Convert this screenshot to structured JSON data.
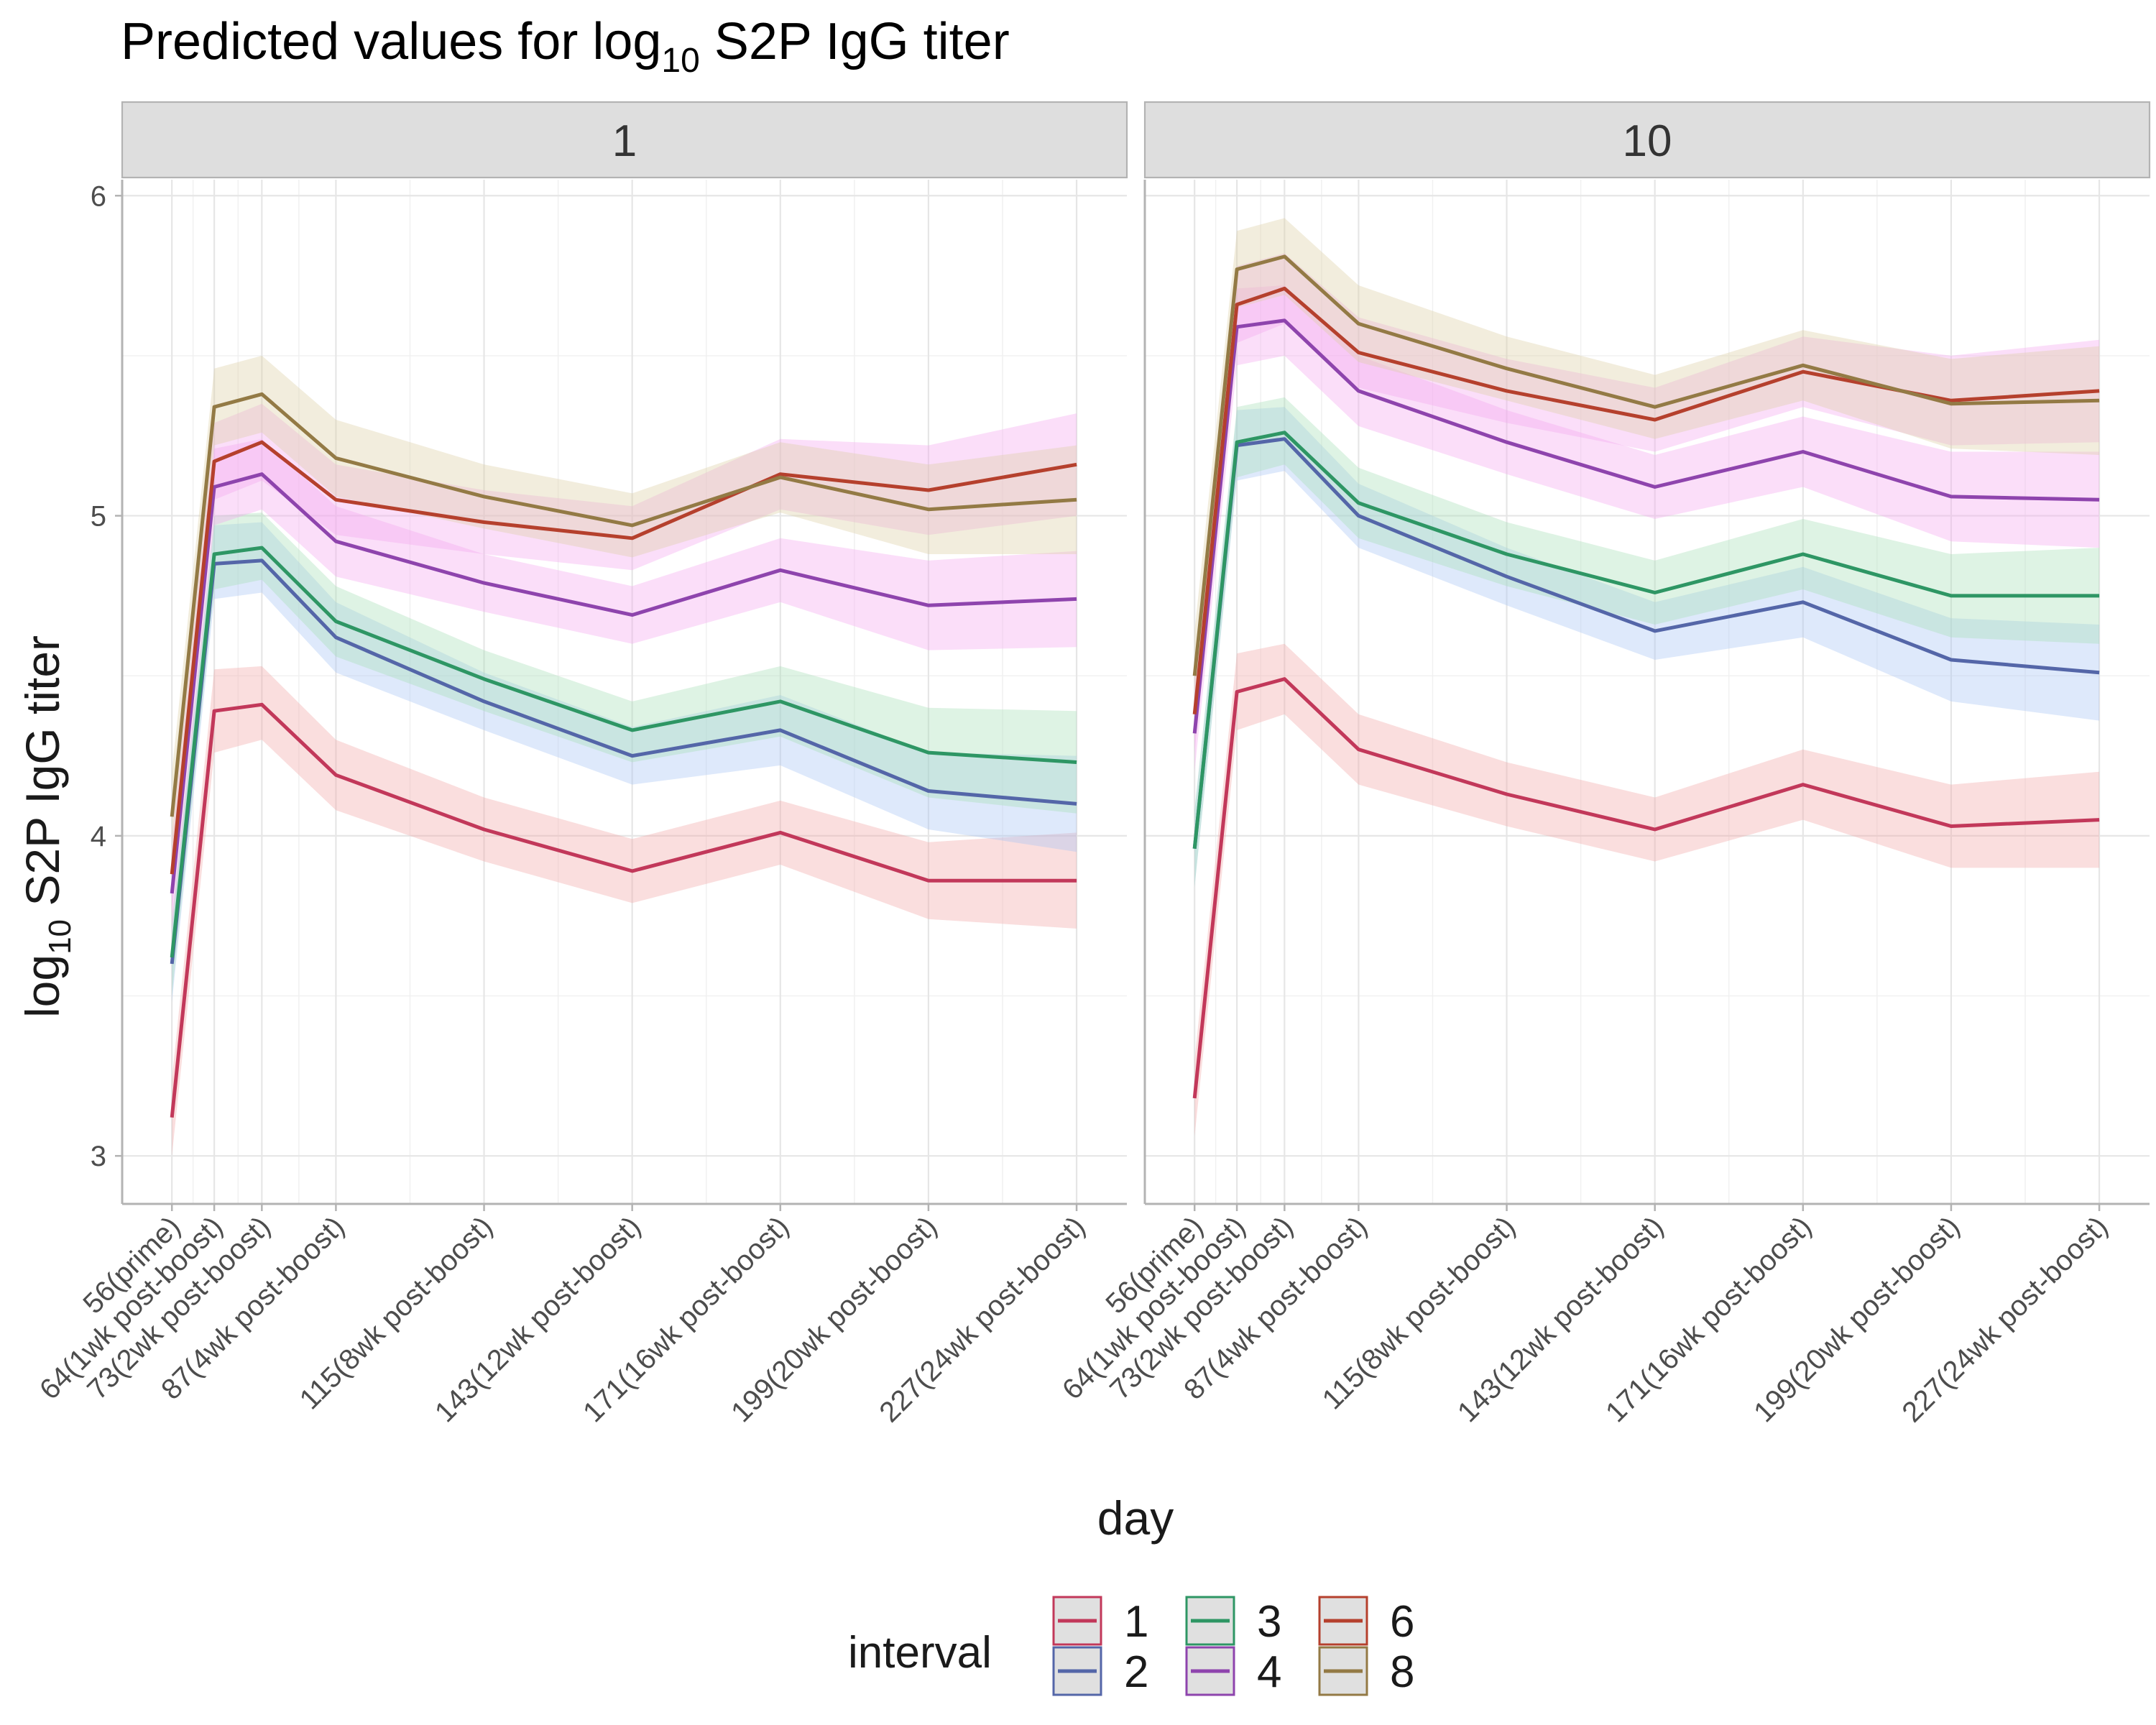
{
  "chart_data": {
    "type": "line",
    "title": "Predicted values for log",
    "title_sub": "10",
    "title_end": " S2P IgG titer",
    "xlabel": "day",
    "ylabel": "log",
    "ylabel_sub": "10",
    "ylabel_end": " S2P IgG titer",
    "ylim": [
      2.85,
      6.05
    ],
    "yticks": [
      3,
      4,
      5,
      6
    ],
    "grid": true,
    "x": [
      56,
      64,
      73,
      87,
      115,
      143,
      171,
      199,
      227
    ],
    "xlim": [
      46.6,
      236.5
    ],
    "x_tick_labels": [
      "56(prime)",
      "64(1wk post-boost)",
      "73(2wk post-boost)",
      "87(4wk post-boost)",
      "115(8wk post-boost)",
      "143(12wk post-boost)",
      "171(16wk post-boost)",
      "199(20wk post-boost)",
      "227(24wk post-boost)"
    ],
    "legend": {
      "title": "interval",
      "position": "bottom"
    },
    "colors": {
      "1": "#c2385a",
      "2": "#5466a8",
      "3": "#2e9664",
      "4": "#8e44ad",
      "6": "#b5402d",
      "8": "#937a45"
    },
    "ribbon_colors": {
      "1": "#f2a7a7",
      "2": "#a9c4f5",
      "3": "#a8e0b8",
      "4": "#f5a8f0",
      "6": "#f5a8f0",
      "8": "#ddd0a5"
    },
    "panels": [
      {
        "strip": "1",
        "series": [
          {
            "name": "1",
            "values": [
              3.12,
              4.39,
              4.41,
              4.19,
              4.02,
              3.89,
              4.01,
              3.86,
              3.86
            ],
            "lower": [
              3.0,
              4.26,
              4.3,
              4.08,
              3.92,
              3.79,
              3.91,
              3.74,
              3.71
            ],
            "upper": [
              3.24,
              4.52,
              4.53,
              4.3,
              4.12,
              3.99,
              4.11,
              3.98,
              4.01
            ]
          },
          {
            "name": "2",
            "values": [
              3.6,
              4.85,
              4.86,
              4.62,
              4.42,
              4.25,
              4.33,
              4.14,
              4.1
            ],
            "lower": [
              3.48,
              4.74,
              4.76,
              4.51,
              4.33,
              4.16,
              4.22,
              4.02,
              3.95
            ],
            "upper": [
              3.72,
              4.97,
              4.98,
              4.73,
              4.51,
              4.34,
              4.44,
              4.26,
              4.25
            ]
          },
          {
            "name": "3",
            "values": [
              3.62,
              4.88,
              4.9,
              4.67,
              4.49,
              4.33,
              4.42,
              4.26,
              4.23
            ],
            "lower": [
              3.5,
              4.77,
              4.8,
              4.56,
              4.39,
              4.23,
              4.31,
              4.12,
              4.07
            ],
            "upper": [
              3.74,
              5.0,
              5.01,
              4.78,
              4.58,
              4.42,
              4.53,
              4.4,
              4.39
            ]
          },
          {
            "name": "4",
            "values": [
              3.82,
              5.09,
              5.13,
              4.92,
              4.79,
              4.69,
              4.83,
              4.72,
              4.74
            ],
            "lower": [
              3.7,
              4.97,
              5.02,
              4.81,
              4.7,
              4.6,
              4.73,
              4.58,
              4.59
            ],
            "upper": [
              3.94,
              5.21,
              5.24,
              5.03,
              4.88,
              4.78,
              4.93,
              4.86,
              4.89
            ]
          },
          {
            "name": "6",
            "values": [
              3.88,
              5.17,
              5.23,
              5.05,
              4.98,
              4.93,
              5.13,
              5.08,
              5.16
            ],
            "lower": [
              3.76,
              5.05,
              5.11,
              4.94,
              4.88,
              4.83,
              5.02,
              4.94,
              5.0
            ],
            "upper": [
              4.0,
              5.29,
              5.35,
              5.16,
              5.08,
              5.03,
              5.24,
              5.22,
              5.32
            ]
          },
          {
            "name": "8",
            "values": [
              4.06,
              5.34,
              5.38,
              5.18,
              5.06,
              4.97,
              5.12,
              5.02,
              5.05
            ],
            "lower": [
              3.92,
              5.22,
              5.26,
              5.06,
              4.96,
              4.87,
              5.01,
              4.88,
              4.88
            ],
            "upper": [
              4.2,
              5.46,
              5.5,
              5.3,
              5.16,
              5.07,
              5.23,
              5.16,
              5.22
            ]
          }
        ]
      },
      {
        "strip": "10",
        "series": [
          {
            "name": "1",
            "values": [
              3.18,
              4.45,
              4.49,
              4.27,
              4.13,
              4.02,
              4.16,
              4.03,
              4.05
            ],
            "lower": [
              3.06,
              4.33,
              4.38,
              4.16,
              4.03,
              3.92,
              4.05,
              3.9,
              3.9
            ],
            "upper": [
              3.3,
              4.57,
              4.6,
              4.38,
              4.23,
              4.12,
              4.27,
              4.16,
              4.2
            ]
          },
          {
            "name": "2",
            "values": [
              3.96,
              5.22,
              5.24,
              5.0,
              4.81,
              4.64,
              4.73,
              4.55,
              4.51
            ],
            "lower": [
              3.84,
              5.11,
              5.14,
              4.9,
              4.72,
              4.55,
              4.62,
              4.42,
              4.36
            ],
            "upper": [
              4.08,
              5.33,
              5.34,
              5.1,
              4.9,
              4.73,
              4.84,
              4.68,
              4.66
            ]
          },
          {
            "name": "3",
            "values": [
              3.96,
              5.23,
              5.26,
              5.04,
              4.88,
              4.76,
              4.88,
              4.75,
              4.75
            ],
            "lower": [
              3.84,
              5.12,
              5.16,
              4.93,
              4.78,
              4.66,
              4.77,
              4.62,
              4.6
            ],
            "upper": [
              4.08,
              5.34,
              5.37,
              5.15,
              4.98,
              4.86,
              4.99,
              4.88,
              4.9
            ]
          },
          {
            "name": "4",
            "values": [
              4.32,
              5.59,
              5.61,
              5.39,
              5.23,
              5.09,
              5.2,
              5.06,
              5.05
            ],
            "lower": [
              4.2,
              5.47,
              5.5,
              5.28,
              5.13,
              4.99,
              5.09,
              4.92,
              4.9
            ],
            "upper": [
              4.44,
              5.71,
              5.72,
              5.5,
              5.33,
              5.19,
              5.31,
              5.2,
              5.2
            ]
          },
          {
            "name": "6",
            "values": [
              4.38,
              5.66,
              5.71,
              5.51,
              5.39,
              5.3,
              5.45,
              5.36,
              5.39
            ],
            "lower": [
              4.26,
              5.54,
              5.6,
              5.4,
              5.29,
              5.2,
              5.34,
              5.22,
              5.23
            ],
            "upper": [
              4.5,
              5.78,
              5.82,
              5.62,
              5.49,
              5.4,
              5.56,
              5.5,
              5.55
            ]
          },
          {
            "name": "8",
            "values": [
              4.5,
              5.77,
              5.81,
              5.6,
              5.46,
              5.34,
              5.47,
              5.35,
              5.36
            ],
            "lower": [
              4.36,
              5.65,
              5.69,
              5.48,
              5.36,
              5.24,
              5.36,
              5.21,
              5.19
            ],
            "upper": [
              4.64,
              5.89,
              5.93,
              5.72,
              5.56,
              5.44,
              5.58,
              5.49,
              5.53
            ]
          }
        ]
      }
    ]
  }
}
